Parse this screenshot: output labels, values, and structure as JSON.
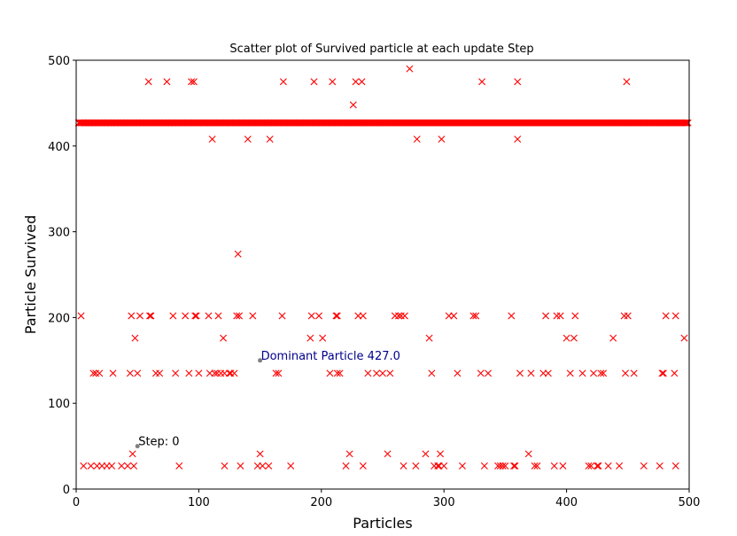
{
  "chart_data": {
    "type": "scatter",
    "title": "Scatter plot of Survived particle at each update Step",
    "xlabel": "Particles",
    "ylabel": "Particle Survived",
    "xlim": [
      0,
      500
    ],
    "ylim": [
      0,
      500
    ],
    "xticks": [
      "0",
      "100",
      "200",
      "300",
      "400",
      "500"
    ],
    "yticks": [
      "0",
      "100",
      "200",
      "300",
      "400",
      "500"
    ],
    "grid": false,
    "legend": "none",
    "marker": "x",
    "colors": {
      "points": "#ff0000",
      "annotation_dominant": "#00008b",
      "annotation_step": "#000000",
      "annotation_dot": "#808080"
    },
    "annotations": [
      {
        "text": "Dominant Particle 427.0",
        "x": 150,
        "y": 150
      },
      {
        "text": "Step:  0",
        "x": 50,
        "y": 50
      }
    ],
    "dominant_value": 427,
    "dominant_x_range": [
      2,
      499
    ],
    "points": [
      [
        4,
        202
      ],
      [
        6,
        27
      ],
      [
        12,
        27
      ],
      [
        14,
        135
      ],
      [
        16,
        135
      ],
      [
        17,
        27
      ],
      [
        19,
        135
      ],
      [
        21,
        27
      ],
      [
        25,
        27
      ],
      [
        29,
        27
      ],
      [
        30,
        135
      ],
      [
        37,
        27
      ],
      [
        42,
        27
      ],
      [
        44,
        135
      ],
      [
        45,
        202
      ],
      [
        46,
        41
      ],
      [
        47,
        27
      ],
      [
        48,
        176
      ],
      [
        50,
        135
      ],
      [
        52,
        202
      ],
      [
        59,
        475
      ],
      [
        60,
        202
      ],
      [
        61,
        202
      ],
      [
        65,
        135
      ],
      [
        68,
        135
      ],
      [
        74,
        475
      ],
      [
        79,
        202
      ],
      [
        81,
        135
      ],
      [
        84,
        27
      ],
      [
        89,
        202
      ],
      [
        92,
        135
      ],
      [
        94,
        475
      ],
      [
        96,
        475
      ],
      [
        97,
        202
      ],
      [
        98,
        202
      ],
      [
        100,
        135
      ],
      [
        108,
        202
      ],
      [
        109,
        135
      ],
      [
        111,
        408
      ],
      [
        113,
        135
      ],
      [
        115,
        135
      ],
      [
        116,
        202
      ],
      [
        118,
        135
      ],
      [
        120,
        176
      ],
      [
        121,
        27
      ],
      [
        121,
        135
      ],
      [
        125,
        135
      ],
      [
        126,
        135
      ],
      [
        129,
        135
      ],
      [
        131,
        202
      ],
      [
        132,
        274
      ],
      [
        133,
        202
      ],
      [
        134,
        27
      ],
      [
        140,
        408
      ],
      [
        144,
        202
      ],
      [
        148,
        27
      ],
      [
        150,
        41
      ],
      [
        152,
        27
      ],
      [
        157,
        27
      ],
      [
        158,
        408
      ],
      [
        163,
        135
      ],
      [
        165,
        135
      ],
      [
        168,
        202
      ],
      [
        169,
        475
      ],
      [
        175,
        27
      ],
      [
        191,
        176
      ],
      [
        192,
        202
      ],
      [
        194,
        475
      ],
      [
        198,
        202
      ],
      [
        201,
        176
      ],
      [
        207,
        135
      ],
      [
        209,
        475
      ],
      [
        212,
        202
      ],
      [
        213,
        202
      ],
      [
        213,
        135
      ],
      [
        215,
        135
      ],
      [
        220,
        27
      ],
      [
        223,
        41
      ],
      [
        226,
        448
      ],
      [
        228,
        475
      ],
      [
        230,
        202
      ],
      [
        233,
        475
      ],
      [
        234,
        27
      ],
      [
        234,
        202
      ],
      [
        238,
        135
      ],
      [
        245,
        135
      ],
      [
        250,
        135
      ],
      [
        254,
        41
      ],
      [
        256,
        135
      ],
      [
        260,
        202
      ],
      [
        263,
        202
      ],
      [
        265,
        202
      ],
      [
        267,
        27
      ],
      [
        268,
        202
      ],
      [
        272,
        490
      ],
      [
        277,
        27
      ],
      [
        278,
        408
      ],
      [
        285,
        41
      ],
      [
        288,
        176
      ],
      [
        290,
        135
      ],
      [
        292,
        27
      ],
      [
        295,
        27
      ],
      [
        296,
        27
      ],
      [
        297,
        41
      ],
      [
        298,
        408
      ],
      [
        300,
        27
      ],
      [
        304,
        202
      ],
      [
        308,
        202
      ],
      [
        311,
        135
      ],
      [
        315,
        27
      ],
      [
        324,
        202
      ],
      [
        326,
        202
      ],
      [
        330,
        135
      ],
      [
        331,
        475
      ],
      [
        333,
        27
      ],
      [
        336,
        135
      ],
      [
        344,
        27
      ],
      [
        346,
        27
      ],
      [
        348,
        27
      ],
      [
        350,
        27
      ],
      [
        355,
        202
      ],
      [
        357,
        27
      ],
      [
        358,
        27
      ],
      [
        360,
        408
      ],
      [
        360,
        475
      ],
      [
        362,
        135
      ],
      [
        369,
        41
      ],
      [
        371,
        135
      ],
      [
        374,
        27
      ],
      [
        376,
        27
      ],
      [
        381,
        135
      ],
      [
        383,
        202
      ],
      [
        385,
        135
      ],
      [
        390,
        27
      ],
      [
        392,
        202
      ],
      [
        395,
        202
      ],
      [
        397,
        27
      ],
      [
        400,
        176
      ],
      [
        403,
        135
      ],
      [
        406,
        176
      ],
      [
        407,
        202
      ],
      [
        413,
        135
      ],
      [
        418,
        27
      ],
      [
        420,
        27
      ],
      [
        422,
        135
      ],
      [
        425,
        27
      ],
      [
        426,
        27
      ],
      [
        428,
        135
      ],
      [
        430,
        135
      ],
      [
        434,
        27
      ],
      [
        438,
        176
      ],
      [
        443,
        27
      ],
      [
        447,
        202
      ],
      [
        448,
        135
      ],
      [
        449,
        475
      ],
      [
        450,
        202
      ],
      [
        455,
        135
      ],
      [
        463,
        27
      ],
      [
        476,
        27
      ],
      [
        478,
        135
      ],
      [
        479,
        135
      ],
      [
        481,
        202
      ],
      [
        488,
        135
      ],
      [
        489,
        202
      ],
      [
        489,
        27
      ],
      [
        496,
        176
      ]
    ]
  }
}
